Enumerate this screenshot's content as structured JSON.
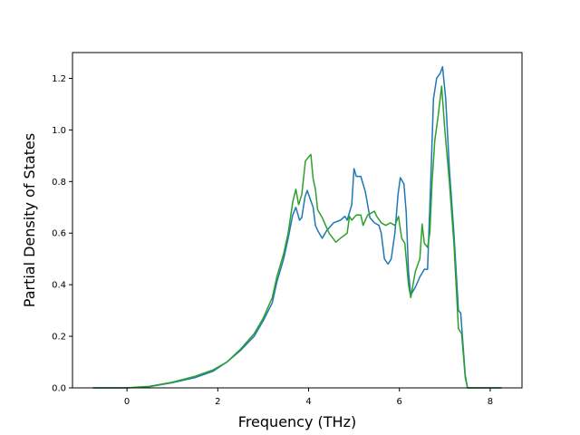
{
  "chart_data": {
    "type": "line",
    "title": "",
    "xlabel": "Frequency (THz)",
    "ylabel": "Partial Density of States",
    "xlim": [
      -1.2,
      8.7
    ],
    "ylim": [
      0,
      1.3
    ],
    "xticks": [
      0,
      2,
      4,
      6,
      8
    ],
    "xtick_labels": [
      "0",
      "2",
      "4",
      "6",
      "8"
    ],
    "yticks": [
      0.0,
      0.2,
      0.4,
      0.6,
      0.8,
      1.0,
      1.2
    ],
    "ytick_labels": [
      "0.0",
      "0.2",
      "0.4",
      "0.6",
      "0.8",
      "1.0",
      "1.2"
    ],
    "grid": false,
    "legend": "none",
    "series": [
      {
        "color": "#1f77b4",
        "points": [
          [
            -0.75,
            0.0
          ],
          [
            0.0,
            0.0
          ],
          [
            0.5,
            0.005
          ],
          [
            1.0,
            0.02
          ],
          [
            1.5,
            0.04
          ],
          [
            1.9,
            0.065
          ],
          [
            2.2,
            0.1
          ],
          [
            2.5,
            0.145
          ],
          [
            2.8,
            0.2
          ],
          [
            3.0,
            0.26
          ],
          [
            3.2,
            0.33
          ],
          [
            3.3,
            0.41
          ],
          [
            3.45,
            0.5
          ],
          [
            3.55,
            0.58
          ],
          [
            3.65,
            0.67
          ],
          [
            3.72,
            0.7
          ],
          [
            3.8,
            0.65
          ],
          [
            3.85,
            0.66
          ],
          [
            3.92,
            0.74
          ],
          [
            3.97,
            0.765
          ],
          [
            4.02,
            0.74
          ],
          [
            4.1,
            0.7
          ],
          [
            4.15,
            0.63
          ],
          [
            4.2,
            0.61
          ],
          [
            4.3,
            0.58
          ],
          [
            4.4,
            0.61
          ],
          [
            4.55,
            0.64
          ],
          [
            4.7,
            0.65
          ],
          [
            4.8,
            0.665
          ],
          [
            4.85,
            0.65
          ],
          [
            4.95,
            0.71
          ],
          [
            5.0,
            0.85
          ],
          [
            5.05,
            0.82
          ],
          [
            5.15,
            0.82
          ],
          [
            5.25,
            0.76
          ],
          [
            5.35,
            0.66
          ],
          [
            5.45,
            0.64
          ],
          [
            5.55,
            0.63
          ],
          [
            5.6,
            0.6
          ],
          [
            5.67,
            0.5
          ],
          [
            5.75,
            0.48
          ],
          [
            5.82,
            0.5
          ],
          [
            5.9,
            0.6
          ],
          [
            5.97,
            0.75
          ],
          [
            6.02,
            0.815
          ],
          [
            6.1,
            0.79
          ],
          [
            6.15,
            0.68
          ],
          [
            6.2,
            0.45
          ],
          [
            6.25,
            0.36
          ],
          [
            6.35,
            0.39
          ],
          [
            6.45,
            0.43
          ],
          [
            6.55,
            0.46
          ],
          [
            6.62,
            0.46
          ],
          [
            6.7,
            0.85
          ],
          [
            6.75,
            1.12
          ],
          [
            6.82,
            1.2
          ],
          [
            6.9,
            1.22
          ],
          [
            6.95,
            1.245
          ],
          [
            7.02,
            1.12
          ],
          [
            7.1,
            0.85
          ],
          [
            7.2,
            0.6
          ],
          [
            7.3,
            0.3
          ],
          [
            7.35,
            0.29
          ],
          [
            7.45,
            0.05
          ],
          [
            7.5,
            0.0
          ],
          [
            8.25,
            0.0
          ]
        ]
      },
      {
        "color": "#2ca02c",
        "points": [
          [
            -0.75,
            0.0
          ],
          [
            0.0,
            0.0
          ],
          [
            0.5,
            0.006
          ],
          [
            1.0,
            0.022
          ],
          [
            1.5,
            0.045
          ],
          [
            1.9,
            0.07
          ],
          [
            2.2,
            0.1
          ],
          [
            2.5,
            0.15
          ],
          [
            2.8,
            0.21
          ],
          [
            3.0,
            0.27
          ],
          [
            3.2,
            0.35
          ],
          [
            3.3,
            0.43
          ],
          [
            3.45,
            0.52
          ],
          [
            3.55,
            0.6
          ],
          [
            3.65,
            0.72
          ],
          [
            3.72,
            0.77
          ],
          [
            3.78,
            0.71
          ],
          [
            3.85,
            0.75
          ],
          [
            3.93,
            0.88
          ],
          [
            4.0,
            0.895
          ],
          [
            4.05,
            0.905
          ],
          [
            4.1,
            0.81
          ],
          [
            4.15,
            0.77
          ],
          [
            4.2,
            0.69
          ],
          [
            4.3,
            0.66
          ],
          [
            4.45,
            0.6
          ],
          [
            4.6,
            0.565
          ],
          [
            4.7,
            0.58
          ],
          [
            4.85,
            0.6
          ],
          [
            4.9,
            0.665
          ],
          [
            4.95,
            0.65
          ],
          [
            5.05,
            0.67
          ],
          [
            5.15,
            0.67
          ],
          [
            5.2,
            0.63
          ],
          [
            5.3,
            0.67
          ],
          [
            5.45,
            0.685
          ],
          [
            5.5,
            0.665
          ],
          [
            5.6,
            0.64
          ],
          [
            5.7,
            0.63
          ],
          [
            5.8,
            0.64
          ],
          [
            5.9,
            0.63
          ],
          [
            5.98,
            0.665
          ],
          [
            6.05,
            0.58
          ],
          [
            6.12,
            0.56
          ],
          [
            6.2,
            0.4
          ],
          [
            6.25,
            0.35
          ],
          [
            6.35,
            0.45
          ],
          [
            6.45,
            0.5
          ],
          [
            6.5,
            0.635
          ],
          [
            6.55,
            0.56
          ],
          [
            6.62,
            0.545
          ],
          [
            6.67,
            0.6
          ],
          [
            6.72,
            0.8
          ],
          [
            6.78,
            0.96
          ],
          [
            6.85,
            1.05
          ],
          [
            6.93,
            1.17
          ],
          [
            7.0,
            1.0
          ],
          [
            7.1,
            0.8
          ],
          [
            7.2,
            0.56
          ],
          [
            7.3,
            0.23
          ],
          [
            7.37,
            0.21
          ],
          [
            7.45,
            0.04
          ],
          [
            7.5,
            0.0
          ],
          [
            8.25,
            0.0
          ]
        ]
      }
    ]
  }
}
